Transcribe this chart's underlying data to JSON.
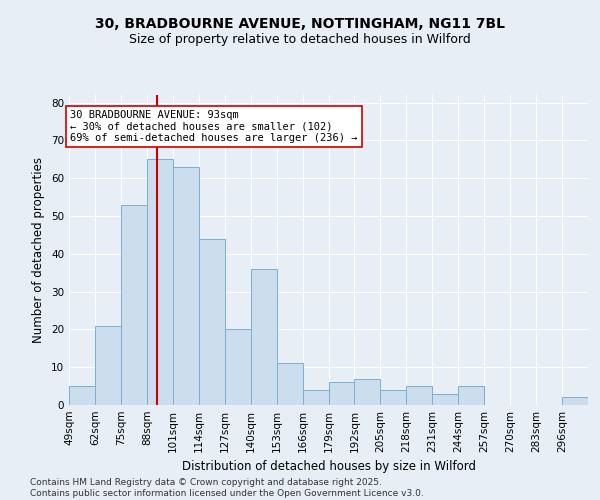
{
  "title_line1": "30, BRADBOURNE AVENUE, NOTTINGHAM, NG11 7BL",
  "title_line2": "Size of property relative to detached houses in Wilford",
  "xlabel": "Distribution of detached houses by size in Wilford",
  "ylabel": "Number of detached properties",
  "bar_color": "#ccdded",
  "bar_edge_color": "#7aafd4",
  "background_color": "#e8eef6",
  "grid_color": "#ffffff",
  "bins": [
    49,
    62,
    75,
    88,
    101,
    114,
    127,
    140,
    153,
    166,
    179,
    192,
    205,
    218,
    231,
    244,
    257,
    270,
    283,
    296,
    309
  ],
  "counts": [
    5,
    21,
    53,
    65,
    63,
    44,
    20,
    36,
    11,
    4,
    6,
    7,
    4,
    5,
    3,
    5,
    0,
    0,
    0,
    2
  ],
  "property_size": 93,
  "red_line_color": "#cc0000",
  "annotation_line1": "30 BRADBOURNE AVENUE: 93sqm",
  "annotation_line2": "← 30% of detached houses are smaller (102)",
  "annotation_line3": "69% of semi-detached houses are larger (236) →",
  "annotation_box_color": "#ffffff",
  "annotation_box_edge": "#cc0000",
  "ylim": [
    0,
    82
  ],
  "yticks": [
    0,
    10,
    20,
    30,
    40,
    50,
    60,
    70,
    80
  ],
  "footnote": "Contains HM Land Registry data © Crown copyright and database right 2025.\nContains public sector information licensed under the Open Government Licence v3.0.",
  "title_fontsize": 10,
  "subtitle_fontsize": 9,
  "axis_label_fontsize": 8.5,
  "tick_fontsize": 7.5,
  "annotation_fontsize": 7.5,
  "footnote_fontsize": 6.5
}
